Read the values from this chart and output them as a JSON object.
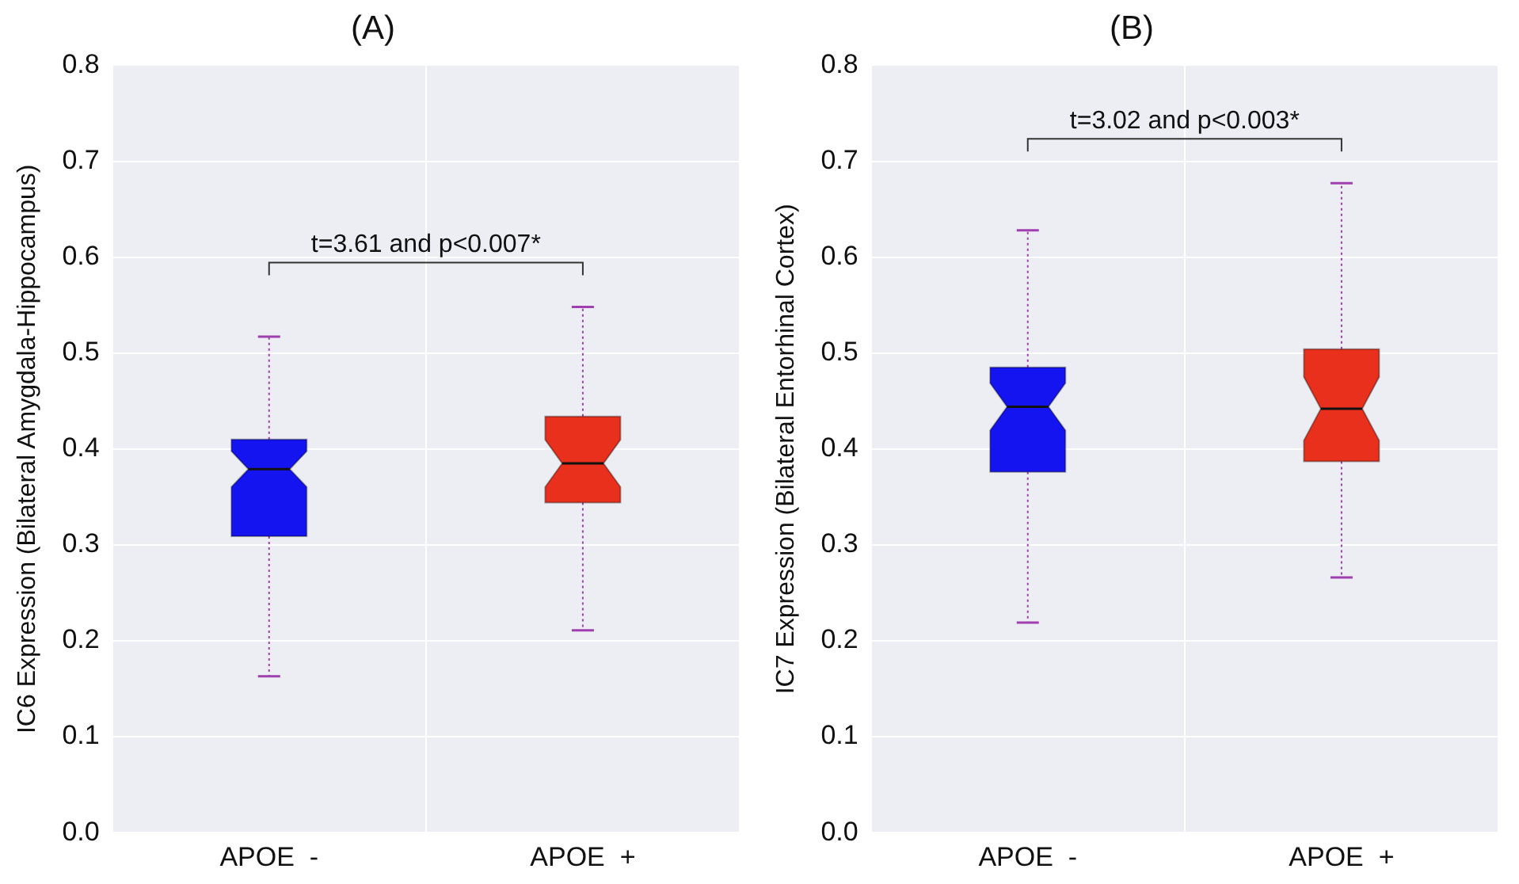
{
  "chart_data": [
    {
      "type": "box",
      "title": "(A)",
      "ylabel": "IC6 Expression (Bilateral Amygdala-Hippocampus)",
      "categories": [
        "APOE  -",
        "APOE  +"
      ],
      "boxes": [
        {
          "low": 0.163,
          "q1": 0.309,
          "median": 0.379,
          "q3": 0.41,
          "high": 0.517
        },
        {
          "low": 0.211,
          "q1": 0.344,
          "median": 0.385,
          "q3": 0.434,
          "high": 0.548
        }
      ],
      "colors": [
        "#1414f0",
        "#e8301c"
      ],
      "ylim": [
        0,
        0.8
      ],
      "yticks": [
        {
          "value": 0,
          "label": "0.0"
        },
        0.1,
        0.2,
        0.3,
        0.4,
        0.5,
        0.6,
        0.7,
        0.8
      ],
      "grid": true,
      "legend": false,
      "annotations": [
        "t=3.61 and p<0.007*"
      ]
    },
    {
      "type": "box",
      "title": "(B)",
      "ylabel": "IC7 Expression (Bilateral Entorhinal Cortex)",
      "categories": [
        "APOE  -",
        "APOE  +"
      ],
      "boxes": [
        {
          "low": 0.219,
          "q1": 0.376,
          "median": 0.444,
          "q3": 0.485,
          "high": 0.628
        },
        {
          "low": 0.266,
          "q1": 0.387,
          "median": 0.442,
          "q3": 0.504,
          "high": 0.677
        }
      ],
      "colors": [
        "#1414f0",
        "#e8301c"
      ],
      "ylim": [
        0,
        0.8
      ],
      "yticks": [
        {
          "value": 0,
          "label": "0.0"
        },
        0.1,
        0.2,
        0.3,
        0.4,
        0.5,
        0.6,
        0.7,
        0.8
      ],
      "grid": true,
      "legend": false,
      "annotations": [
        "t=3.02 and p<0.003*"
      ]
    }
  ]
}
